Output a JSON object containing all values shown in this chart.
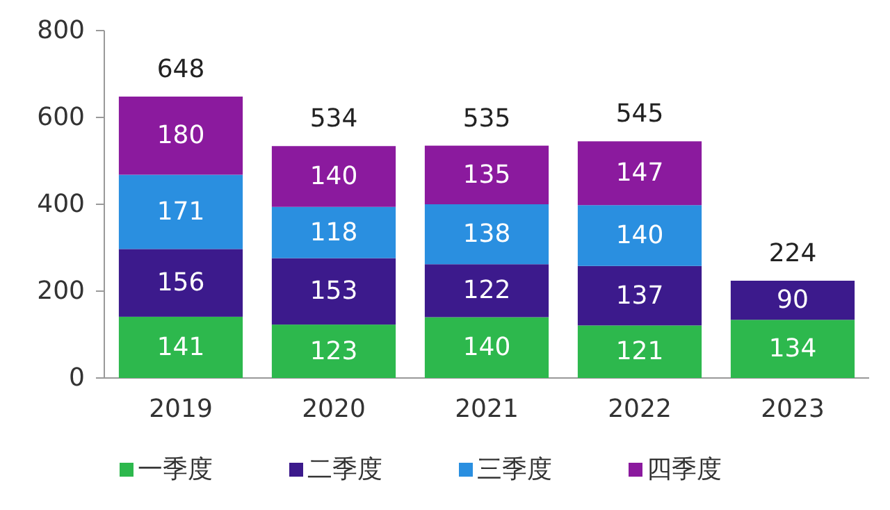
{
  "chart_data": {
    "type": "bar",
    "stacked": true,
    "categories": [
      "2019",
      "2020",
      "2021",
      "2022",
      "2023"
    ],
    "series": [
      {
        "name": "一季度",
        "color": "#2db84d",
        "values": [
          141,
          123,
          140,
          121,
          134
        ]
      },
      {
        "name": "二季度",
        "color": "#3c1a8c",
        "values": [
          156,
          153,
          122,
          137,
          90
        ]
      },
      {
        "name": "三季度",
        "color": "#2a8fe0",
        "values": [
          171,
          118,
          138,
          140,
          null
        ]
      },
      {
        "name": "四季度",
        "color": "#8b1a9e",
        "values": [
          180,
          140,
          135,
          147,
          null
        ]
      }
    ],
    "ylim": [
      0,
      800
    ],
    "yticks": [
      0,
      200,
      400,
      600,
      800
    ],
    "data_labels": true,
    "totals": [
      "648",
      "534",
      "535",
      "545",
      "224"
    ],
    "legend": "bottom"
  }
}
